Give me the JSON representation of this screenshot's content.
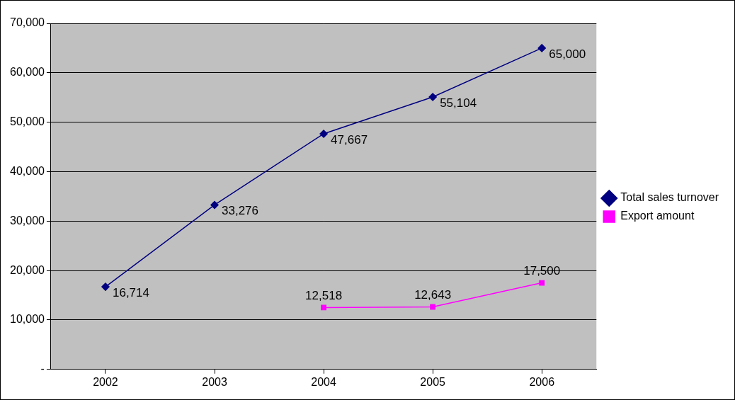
{
  "chart_data": {
    "type": "line",
    "categories": [
      "2002",
      "2003",
      "2004",
      "2005",
      "2006"
    ],
    "series": [
      {
        "name": "Total sales turnover",
        "color": "#000080",
        "marker": "diamond",
        "values": [
          16714,
          33276,
          47667,
          55104,
          65000
        ],
        "value_labels": [
          "16,714",
          "33,276",
          "47,667",
          "55,104",
          "65,000"
        ]
      },
      {
        "name": "Export amount",
        "color": "#ff00ff",
        "marker": "square",
        "values": [
          null,
          null,
          12518,
          12643,
          17500
        ],
        "value_labels": [
          null,
          null,
          "12,518",
          "12,643",
          "17,500"
        ]
      }
    ],
    "ylim": [
      0,
      70000
    ],
    "yticks": [
      {
        "value": 0,
        "label": "-"
      },
      {
        "value": 10000,
        "label": "10,000"
      },
      {
        "value": 20000,
        "label": "20,000"
      },
      {
        "value": 30000,
        "label": "30,000"
      },
      {
        "value": 40000,
        "label": "40,000"
      },
      {
        "value": 50000,
        "label": "50,000"
      },
      {
        "value": 60000,
        "label": "60,000"
      },
      {
        "value": 70000,
        "label": "70,000"
      }
    ],
    "grid": true,
    "legend": "right",
    "data_labels": true
  }
}
